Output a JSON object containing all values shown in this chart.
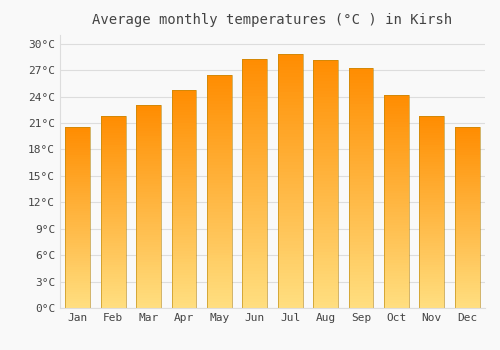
{
  "title": "Average monthly temperatures (°C ) in Kirsh",
  "months": [
    "Jan",
    "Feb",
    "Mar",
    "Apr",
    "May",
    "Jun",
    "Jul",
    "Aug",
    "Sep",
    "Oct",
    "Nov",
    "Dec"
  ],
  "values": [
    20.5,
    21.8,
    23.0,
    24.7,
    26.5,
    28.3,
    28.8,
    28.2,
    27.2,
    24.2,
    21.8,
    20.5
  ],
  "bar_color_light": "#FFD966",
  "bar_color_mid": "#FFA500",
  "bar_color_dark": "#E08000",
  "bar_edge_color": "#B8860B",
  "background_color": "#f9f9f9",
  "grid_color": "#dddddd",
  "text_color": "#444444",
  "title_fontsize": 10,
  "tick_fontsize": 8,
  "ylim": [
    0,
    31
  ],
  "yticks": [
    0,
    3,
    6,
    9,
    12,
    15,
    18,
    21,
    24,
    27,
    30
  ],
  "ytick_labels": [
    "0°C",
    "3°C",
    "6°C",
    "9°C",
    "12°C",
    "15°C",
    "18°C",
    "21°C",
    "24°C",
    "27°C",
    "30°C"
  ]
}
